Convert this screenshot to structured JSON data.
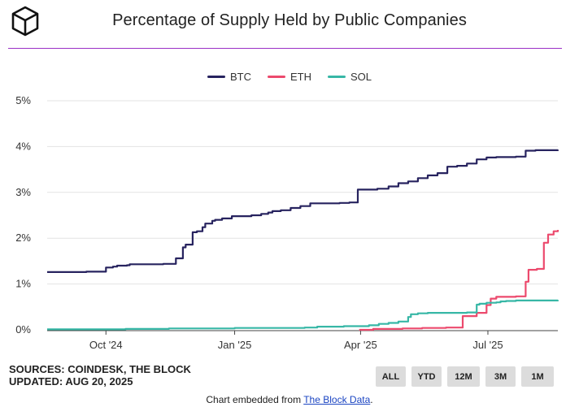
{
  "title": "Percentage of Supply Held by Public Companies",
  "colors": {
    "rule": "#9b2fc6",
    "grid": "#e3e3e3",
    "axis": "#444444"
  },
  "chart_data": {
    "type": "line",
    "title": "Percentage of Supply Held by Public Companies",
    "xlabel": "",
    "ylabel": "",
    "y_ticks": [
      "0%",
      "1%",
      "2%",
      "3%",
      "4%",
      "5%"
    ],
    "x_ticks": [
      {
        "date": "2024-10-01",
        "label": "Oct '24"
      },
      {
        "date": "2025-01-01",
        "label": "Jan '25"
      },
      {
        "date": "2025-04-01",
        "label": "Apr '25"
      },
      {
        "date": "2025-07-01",
        "label": "Jul '25"
      }
    ],
    "ylim": [
      0,
      5
    ],
    "xlim": [
      "2024-08-20",
      "2025-08-20"
    ],
    "grid": "horizontal",
    "legend_position": "top-center",
    "step": true,
    "series": [
      {
        "name": "BTC",
        "color": "#27235f",
        "points": [
          [
            "2024-08-20",
            1.26
          ],
          [
            "2024-09-16",
            1.26
          ],
          [
            "2024-09-17",
            1.27
          ],
          [
            "2024-09-29",
            1.27
          ],
          [
            "2024-10-01",
            1.36
          ],
          [
            "2024-10-06",
            1.38
          ],
          [
            "2024-10-09",
            1.4
          ],
          [
            "2024-10-16",
            1.41
          ],
          [
            "2024-10-18",
            1.43
          ],
          [
            "2024-11-11",
            1.44
          ],
          [
            "2024-11-20",
            1.56
          ],
          [
            "2024-11-25",
            1.8
          ],
          [
            "2024-11-27",
            1.86
          ],
          [
            "2024-12-02",
            2.13
          ],
          [
            "2024-12-05",
            2.15
          ],
          [
            "2024-12-09",
            2.24
          ],
          [
            "2024-12-11",
            2.32
          ],
          [
            "2024-12-16",
            2.38
          ],
          [
            "2024-12-18",
            2.4
          ],
          [
            "2024-12-23",
            2.43
          ],
          [
            "2024-12-30",
            2.48
          ],
          [
            "2025-01-13",
            2.5
          ],
          [
            "2025-01-20",
            2.53
          ],
          [
            "2025-01-25",
            2.56
          ],
          [
            "2025-01-28",
            2.59
          ],
          [
            "2025-02-03",
            2.61
          ],
          [
            "2025-02-10",
            2.66
          ],
          [
            "2025-02-17",
            2.7
          ],
          [
            "2025-02-24",
            2.76
          ],
          [
            "2025-03-17",
            2.77
          ],
          [
            "2025-03-24",
            2.78
          ],
          [
            "2025-03-30",
            3.06
          ],
          [
            "2025-04-13",
            3.08
          ],
          [
            "2025-04-21",
            3.13
          ],
          [
            "2025-04-28",
            3.2
          ],
          [
            "2025-05-05",
            3.24
          ],
          [
            "2025-05-12",
            3.31
          ],
          [
            "2025-05-19",
            3.37
          ],
          [
            "2025-05-26",
            3.42
          ],
          [
            "2025-06-02",
            3.56
          ],
          [
            "2025-06-09",
            3.58
          ],
          [
            "2025-06-16",
            3.63
          ],
          [
            "2025-06-23",
            3.72
          ],
          [
            "2025-06-30",
            3.76
          ],
          [
            "2025-07-07",
            3.77
          ],
          [
            "2025-07-21",
            3.78
          ],
          [
            "2025-07-28",
            3.91
          ],
          [
            "2025-08-04",
            3.92
          ],
          [
            "2025-08-20",
            3.93
          ]
        ]
      },
      {
        "name": "ETH",
        "color": "#ec4a6d",
        "points": [
          [
            "2025-03-31",
            0.0
          ],
          [
            "2025-04-10",
            0.02
          ],
          [
            "2025-05-01",
            0.03
          ],
          [
            "2025-05-15",
            0.04
          ],
          [
            "2025-06-01",
            0.05
          ],
          [
            "2025-06-13",
            0.3
          ],
          [
            "2025-06-23",
            0.37
          ],
          [
            "2025-06-30",
            0.54
          ],
          [
            "2025-07-03",
            0.68
          ],
          [
            "2025-07-07",
            0.72
          ],
          [
            "2025-07-21",
            0.73
          ],
          [
            "2025-07-28",
            1.05
          ],
          [
            "2025-07-30",
            1.31
          ],
          [
            "2025-08-05",
            1.33
          ],
          [
            "2025-08-10",
            1.9
          ],
          [
            "2025-08-13",
            2.08
          ],
          [
            "2025-08-17",
            2.15
          ],
          [
            "2025-08-20",
            2.18
          ]
        ]
      },
      {
        "name": "SOL",
        "color": "#37b7a6",
        "points": [
          [
            "2024-08-20",
            0.01
          ],
          [
            "2024-09-20",
            0.01
          ],
          [
            "2024-10-15",
            0.02
          ],
          [
            "2024-11-15",
            0.03
          ],
          [
            "2025-01-01",
            0.04
          ],
          [
            "2025-02-20",
            0.05
          ],
          [
            "2025-03-01",
            0.07
          ],
          [
            "2025-03-20",
            0.08
          ],
          [
            "2025-04-07",
            0.1
          ],
          [
            "2025-04-14",
            0.13
          ],
          [
            "2025-04-21",
            0.15
          ],
          [
            "2025-04-28",
            0.18
          ],
          [
            "2025-05-05",
            0.28
          ],
          [
            "2025-05-07",
            0.34
          ],
          [
            "2025-05-12",
            0.36
          ],
          [
            "2025-05-19",
            0.37
          ],
          [
            "2025-06-16",
            0.38
          ],
          [
            "2025-06-23",
            0.55
          ],
          [
            "2025-06-25",
            0.57
          ],
          [
            "2025-06-30",
            0.59
          ],
          [
            "2025-07-07",
            0.6
          ],
          [
            "2025-07-10",
            0.62
          ],
          [
            "2025-07-14",
            0.63
          ],
          [
            "2025-07-21",
            0.64
          ],
          [
            "2025-08-20",
            0.65
          ]
        ]
      }
    ]
  },
  "footer": {
    "sources": "SOURCES: COINDESK, THE BLOCK",
    "updated": "UPDATED: AUG 20, 2025"
  },
  "range_buttons": [
    "ALL",
    "YTD",
    "12M",
    "3M",
    "1M"
  ],
  "embed": {
    "prefix": "Chart embedded from ",
    "link_text": "The Block Data",
    "suffix": "."
  }
}
